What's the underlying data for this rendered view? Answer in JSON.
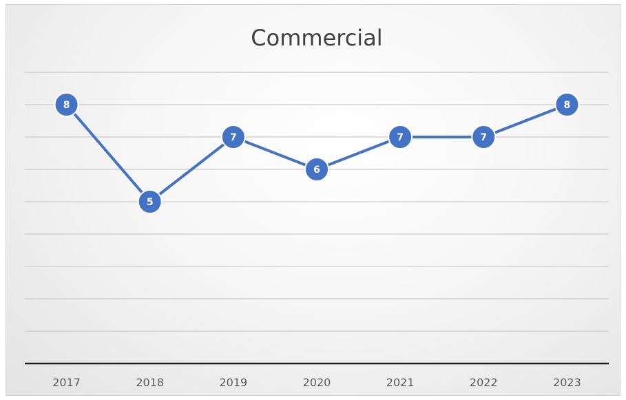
{
  "chart_data": {
    "type": "line",
    "title": "Commercial",
    "xlabel": "",
    "ylabel": "",
    "categories": [
      "2017",
      "2018",
      "2019",
      "2020",
      "2021",
      "2022",
      "2023"
    ],
    "series": [
      {
        "values": [
          8,
          5,
          7,
          6,
          7,
          7,
          8
        ],
        "color": "#4472c4"
      }
    ],
    "ylim": [
      0,
      10
    ],
    "y_gridline_step": 1,
    "grid": true,
    "legend": "none",
    "data_labels": true,
    "marker": "circle"
  }
}
